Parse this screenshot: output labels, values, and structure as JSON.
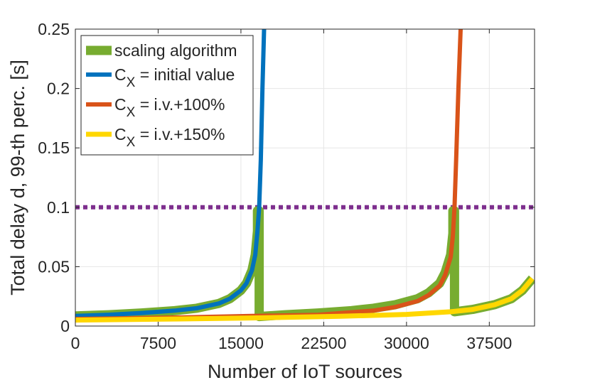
{
  "chart_data": {
    "type": "line",
    "title": "",
    "xlabel": "Number of IoT sources",
    "ylabel": "Total delay d, 99-th perc. [s]",
    "xlim": [
      0,
      41600
    ],
    "ylim": [
      0,
      0.25
    ],
    "xticks": [
      0,
      7500,
      15000,
      22500,
      30000,
      37500
    ],
    "yticks": [
      0,
      0.05,
      0.1,
      0.15,
      0.2,
      0.25
    ],
    "xtick_labels": [
      "0",
      "7500",
      "15000",
      "22500",
      "30000",
      "37500"
    ],
    "ytick_labels": [
      "0",
      "0.05",
      "0.1",
      "0.15",
      "0.2",
      "0.25"
    ],
    "grid": true,
    "legend_position": "top-left",
    "threshold": {
      "y": 0.1,
      "color": "#7E2F8E",
      "style": "dotted"
    },
    "series": [
      {
        "name": "scaling algorithm",
        "color": "#77AC30",
        "x": [
          0,
          3000,
          6000,
          9000,
          11000,
          13000,
          14000,
          15000,
          15500,
          16000,
          16300,
          16500,
          16500,
          16650,
          16650,
          19000,
          22000,
          25000,
          27000,
          29000,
          31000,
          32000,
          33000,
          33500,
          34000,
          34200,
          34200,
          34350,
          34350,
          36000,
          38000,
          39500,
          40500,
          41400
        ],
        "y": [
          0.0085,
          0.0095,
          0.011,
          0.013,
          0.015,
          0.019,
          0.023,
          0.03,
          0.036,
          0.047,
          0.06,
          0.08,
          0.097,
          0.097,
          0.008,
          0.0095,
          0.011,
          0.013,
          0.015,
          0.018,
          0.023,
          0.028,
          0.036,
          0.045,
          0.06,
          0.078,
          0.097,
          0.097,
          0.012,
          0.014,
          0.018,
          0.023,
          0.03,
          0.04
        ]
      },
      {
        "name": "C_X = initial value",
        "label_main": "C",
        "label_sub": "X",
        "label_rest": " = initial value",
        "color": "#0072BD",
        "x": [
          0,
          3000,
          6000,
          9000,
          11000,
          13000,
          14000,
          15000,
          15500,
          16000,
          16300,
          16500,
          16650,
          16800,
          16950,
          17100
        ],
        "y": [
          0.0085,
          0.0095,
          0.011,
          0.013,
          0.015,
          0.019,
          0.023,
          0.03,
          0.036,
          0.047,
          0.06,
          0.08,
          0.1,
          0.14,
          0.2,
          0.25
        ]
      },
      {
        "name": "C_X = i.v.+100%",
        "label_main": "C",
        "label_sub": "X",
        "label_rest": " = i.v.+100%",
        "color": "#D95319",
        "x": [
          0,
          8000,
          16000,
          22000,
          27000,
          29000,
          31000,
          32000,
          33000,
          33500,
          34000,
          34200,
          34350,
          34500,
          34700,
          34900
        ],
        "y": [
          0.006,
          0.007,
          0.0085,
          0.0095,
          0.013,
          0.016,
          0.021,
          0.026,
          0.034,
          0.043,
          0.058,
          0.076,
          0.1,
          0.14,
          0.2,
          0.25
        ]
      },
      {
        "name": "C_X = i.v.+150%",
        "label_main": "C",
        "label_sub": "X",
        "label_rest": " = i.v.+150%",
        "color": "#FFD700",
        "x": [
          0,
          8000,
          16000,
          24000,
          30000,
          34000,
          36000,
          38000,
          39500,
          40500,
          41400
        ],
        "y": [
          0.005,
          0.0058,
          0.0068,
          0.0082,
          0.0098,
          0.012,
          0.014,
          0.018,
          0.023,
          0.03,
          0.04
        ]
      }
    ]
  }
}
